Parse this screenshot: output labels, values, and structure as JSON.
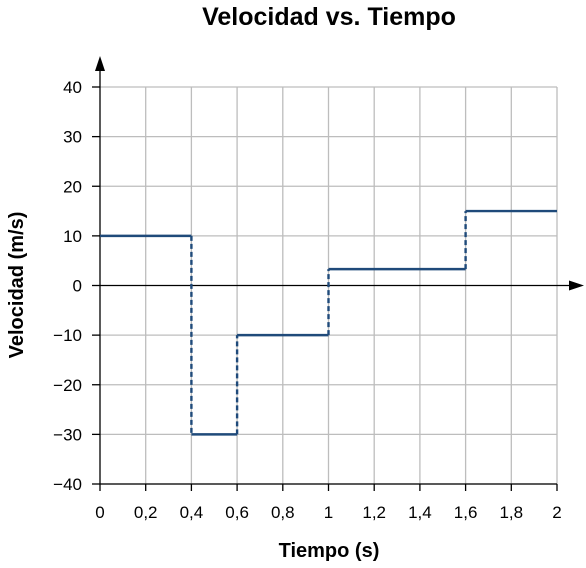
{
  "chart_data": {
    "type": "line",
    "title": "Velocidad vs. Tiempo",
    "xlabel": "Tiempo (s)",
    "ylabel": "Velocidad (m/s)",
    "xlim": [
      0,
      2
    ],
    "ylim": [
      -40,
      40
    ],
    "x_ticks": [
      0,
      0.2,
      0.4,
      0.6,
      0.8,
      1,
      1.2,
      1.4,
      1.6,
      1.8,
      2
    ],
    "x_tick_labels": [
      "0",
      "0,2",
      "0,4",
      "0,6",
      "0,8",
      "1",
      "1,2",
      "1,4",
      "1,6",
      "1,8",
      "2"
    ],
    "y_ticks": [
      40,
      30,
      20,
      10,
      0,
      -10,
      -20,
      -30,
      -40
    ],
    "y_tick_labels": [
      "40",
      "30",
      "20",
      "10",
      "0",
      "−10",
      "−20",
      "−30",
      "−40"
    ],
    "grid": true,
    "line_color": "#1f4a7a",
    "steps": [
      {
        "x_start": 0,
        "x_end": 0.4,
        "y": 10
      },
      {
        "x_start": 0.4,
        "x_end": 0.6,
        "y": -30
      },
      {
        "x_start": 0.6,
        "x_end": 1.0,
        "y": -10
      },
      {
        "x_start": 1.0,
        "x_end": 1.6,
        "y": 3.3
      },
      {
        "x_start": 1.6,
        "x_end": 2.0,
        "y": 15
      }
    ],
    "transitions": [
      {
        "x": 0.4,
        "y_from": 10,
        "y_to": -30
      },
      {
        "x": 0.6,
        "y_from": -30,
        "y_to": -10
      },
      {
        "x": 1.0,
        "y_from": -10,
        "y_to": 3.3
      },
      {
        "x": 1.6,
        "y_from": 3.3,
        "y_to": 15
      }
    ]
  }
}
